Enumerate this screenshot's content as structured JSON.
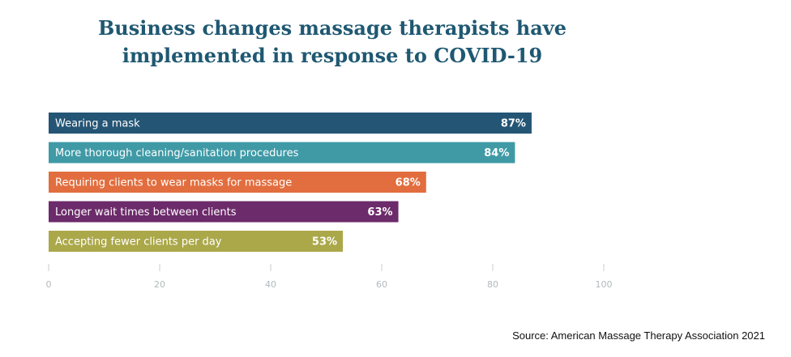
{
  "title_lines": [
    "Business changes massage therapists have",
    "implemented in response to COVID-19"
  ],
  "source": "Source: American Massage Therapy Association 2021",
  "chart_data": {
    "type": "bar",
    "orientation": "horizontal",
    "title": "Business changes massage therapists have implemented in response to COVID-19",
    "categories": [
      "Wearing a mask",
      "More thorough cleaning/sanitation procedures",
      "Requiring clients to wear masks for massage",
      "Longer wait times between clients",
      "Accepting fewer clients per day"
    ],
    "values": [
      87,
      84,
      68,
      63,
      53
    ],
    "value_labels": [
      "87%",
      "84%",
      "68%",
      "63%",
      "53%"
    ],
    "colors": [
      "#245575",
      "#3f9aa6",
      "#e26d3e",
      "#6c2b6a",
      "#aba84a"
    ],
    "xlim": [
      0,
      100
    ],
    "xticks": [
      0,
      20,
      40,
      60,
      80,
      100
    ],
    "grid": false,
    "legend": "none"
  }
}
